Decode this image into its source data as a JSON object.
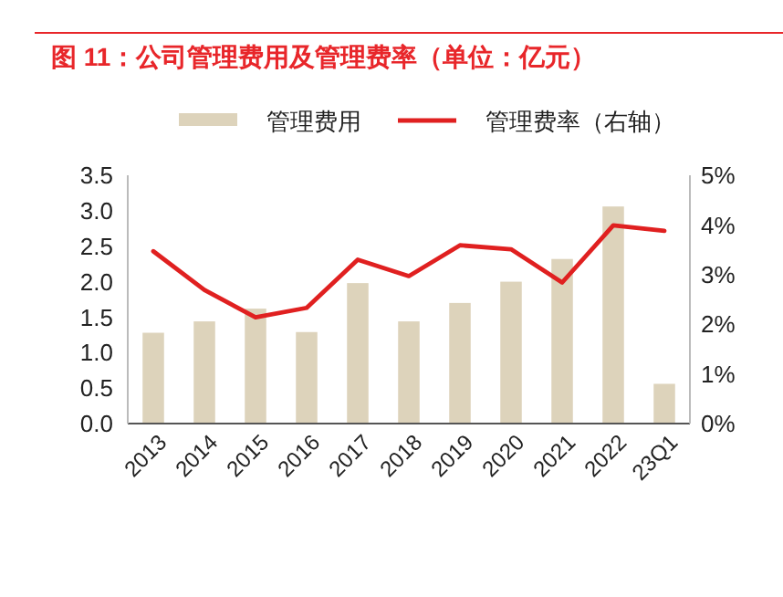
{
  "chart_data": {
    "type": "bar",
    "title": "图 11：公司管理费用及管理费率（单位：亿元）",
    "categories": [
      "2013",
      "2014",
      "2015",
      "2016",
      "2017",
      "2018",
      "2019",
      "2020",
      "2021",
      "2022",
      "23Q1"
    ],
    "series": [
      {
        "name": "管理费用",
        "color": "#ddd3bb",
        "values": [
          1.28,
          1.44,
          1.62,
          1.29,
          1.98,
          1.44,
          1.7,
          2.0,
          2.32,
          3.06,
          0.56
        ]
      },
      {
        "name": "管理费率（右轴）",
        "type": "line",
        "axis": "y2",
        "color": "#e02020",
        "values": [
          3.47,
          2.69,
          2.14,
          2.33,
          3.3,
          2.97,
          3.59,
          3.51,
          2.84,
          3.99,
          3.88
        ]
      }
    ],
    "ylim": [
      0,
      3.5
    ],
    "yticks": [
      {
        "value": 0,
        "label": "0.0"
      },
      0.5,
      {
        "value": 1,
        "label": "1.0"
      },
      1.5,
      {
        "value": 2,
        "label": "2.0"
      },
      2.5,
      {
        "value": 3,
        "label": "3.0"
      },
      3.5
    ],
    "y2lim": [
      0,
      5
    ],
    "y2ticks": [
      {
        "value": 0,
        "label": "0%"
      },
      {
        "value": 1,
        "label": "1%"
      },
      {
        "value": 2,
        "label": "2%"
      },
      {
        "value": 3,
        "label": "3%"
      },
      {
        "value": 4,
        "label": "4%"
      },
      {
        "value": 5,
        "label": "5%"
      }
    ],
    "legend": "top",
    "grid": false
  }
}
